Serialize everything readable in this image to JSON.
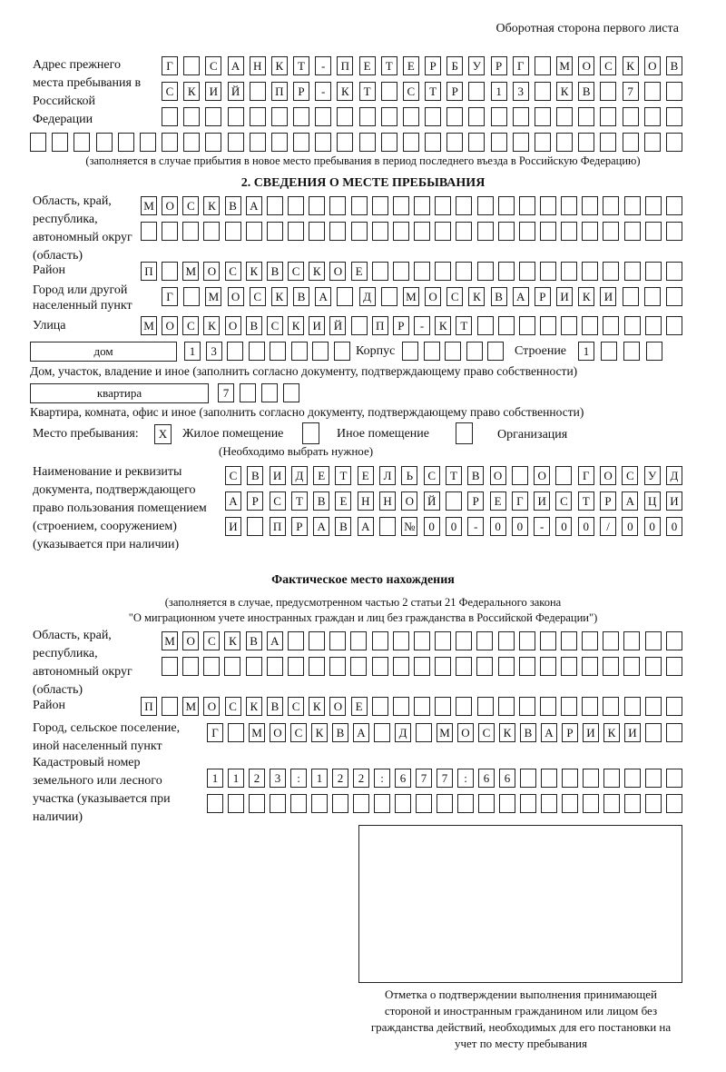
{
  "header": "Оборотная сторона первого листа",
  "prev_address": {
    "label": "Адрес прежнего места пребывания в Российской Федерации",
    "rows": [
      "Г САНКТ-ПЕТЕРБУРГ МОСКОВ",
      "СКИЙ ПР-КТ СТР 13 КВ 7",
      "",
      ""
    ],
    "note": "(заполняется в случае прибытия в новое место пребывания в период последнего въезда в Российскую Федерацию)"
  },
  "section2": {
    "title": "2. СВЕДЕНИЯ О МЕСТЕ ПРЕБЫВАНИЯ",
    "region_label": "Область, край, республика, автономный округ (область)",
    "region_rows": [
      "МОСКВА",
      ""
    ],
    "district_label": "Район",
    "district": "П МОСКВСКОЕ",
    "city_label": "Город или другой населенный пункт",
    "city": "Г МОСКВА Д МОСКВАРИКИ",
    "street_label": "Улица",
    "street": "МОСКОВСКИЙ ПР-КТ",
    "house_type": "дом",
    "house_number": "13",
    "korpus_label": "Корпус",
    "korpus": "",
    "building_label": "Строение",
    "building": "1",
    "house_note": "Дом, участок, владение и иное (заполнить согласно документу, подтверждающему право собственности)",
    "apt_type": "квартира",
    "apt_number": "7",
    "apt_note": "Квартира, комната, офис и иное (заполнить согласно документу, подтверждающему право собственности)",
    "place_label": "Место пребывания:",
    "place_options": [
      {
        "label": "Жилое помещение",
        "mark": "X"
      },
      {
        "label": "Иное помещение",
        "mark": ""
      },
      {
        "label": "Организация",
        "mark": ""
      }
    ],
    "place_note": "(Необходимо выбрать нужное)",
    "doc_label": "Наименование и реквизиты документа, подтверждающего право пользования помещением (строением, сооружением) (указывается при наличии)",
    "doc_rows": [
      "СВИДЕТЕЛЬСТВО О ГОСУД",
      "АРСТВЕННОЙ РЕГИСТРАЦИ",
      "И ПРАВА №00-00-00/000"
    ]
  },
  "actual": {
    "title": "Фактическое место нахождения",
    "note1": "(заполняется в случае, предусмотренном частью 2 статьи 21 Федерального закона",
    "note2": "\"О миграционном учете иностранных граждан и лиц без гражданства в Российской Федерации\")",
    "region_label": "Область, край, республика, автономный округ (область)",
    "region_rows": [
      "МОСКВА",
      ""
    ],
    "district_label": "Район",
    "district": "П МОСКВСКОЕ",
    "city_label": "Город, сельское поселение, иной населенный пункт",
    "city": "Г МОСКВА Д МОСКВАРИКИ",
    "cadastre_label": "Кадастровый номер земельного или лесного участка (указывается при наличии)",
    "cadastre_rows": [
      "1123:122:677:66",
      ""
    ]
  },
  "stamp": {
    "caption": "Отметка о подтверждении выполнения принимающей стороной и иностранным гражданином или лицом без гражданства действий, необходимых для его постановки на учет по месту пребывания"
  }
}
